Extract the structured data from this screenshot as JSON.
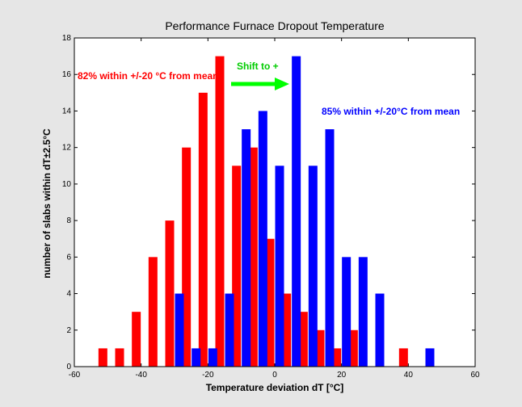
{
  "chart_data": {
    "type": "bar",
    "title": "Performance Furnace Dropout Temperature",
    "xlabel": "Temperature deviation dT [°C]",
    "ylabel": "number of slabs within dT±2.5°C",
    "xlim": [
      -60,
      60
    ],
    "ylim": [
      0,
      18
    ],
    "xticks": [
      "-60",
      "-40",
      "-20",
      "0",
      "20",
      "40",
      "60"
    ],
    "yticks": [
      "0",
      "2",
      "4",
      "6",
      "8",
      "10",
      "12",
      "14",
      "16",
      "18"
    ],
    "grid": false,
    "series": [
      {
        "color": "#ff0000",
        "x": [
          -50,
          -45,
          -40,
          -35,
          -30,
          -25,
          -20,
          -15,
          -10,
          -5,
          0,
          5,
          10,
          15,
          20,
          25,
          30,
          35,
          40,
          45,
          50
        ],
        "values": [
          1,
          1,
          3,
          6,
          8,
          12,
          15,
          17,
          11,
          12,
          7,
          4,
          3,
          2,
          1,
          2,
          0,
          0,
          1,
          0,
          0
        ]
      },
      {
        "color": "#0000ff",
        "x": [
          -50,
          -45,
          -40,
          -35,
          -30,
          -25,
          -20,
          -15,
          -10,
          -5,
          0,
          5,
          10,
          15,
          20,
          25,
          30,
          35,
          40,
          45,
          50
        ],
        "values": [
          0,
          0,
          0,
          0,
          4,
          1,
          1,
          4,
          13,
          14,
          11,
          17,
          11,
          13,
          6,
          6,
          4,
          0,
          0,
          1,
          0
        ]
      }
    ],
    "annotations": [
      {
        "text": "82% within +/-20 °C from mean",
        "color": "#ff0000"
      },
      {
        "text": "85% within +/-20°C from mean",
        "color": "#0000ff"
      },
      {
        "text": "Shift to +",
        "color": "#00cc00"
      }
    ]
  }
}
